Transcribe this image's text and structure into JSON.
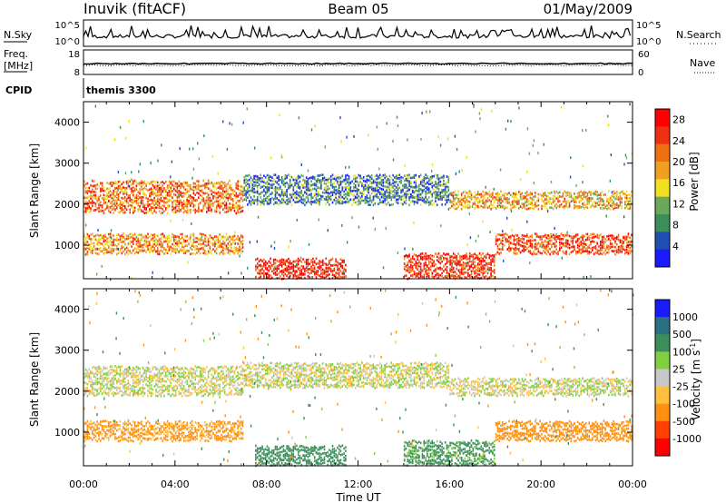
{
  "header": {
    "station": "Inuvik (fitACF)",
    "beam": "Beam 05",
    "date": "01/May/2009"
  },
  "top_panels": {
    "nsky_label": "N.Sky",
    "nsky_ticks": [
      "10^5",
      "10^0"
    ],
    "nsearch_label": "N.Search",
    "nsearch_ticks": [
      "10^5",
      "10^0"
    ],
    "freq_label": "Freq.",
    "freq_unit": "[MHz]",
    "freq_ticks": [
      "18",
      "8"
    ],
    "nave_label": "Nave",
    "nave_ticks": [
      "60",
      "0"
    ],
    "cpid_label": "CPID",
    "cpid_value": "themis 3300"
  },
  "colors": {
    "power_scale": [
      "#1a1aff",
      "#1f4fb0",
      "#3a8f5a",
      "#6ca85a",
      "#f0e020",
      "#f0a020",
      "#f07010",
      "#f03010",
      "#ff0000"
    ],
    "velocity_scale": [
      "#ff0000",
      "#ff4000",
      "#ff9010",
      "#ffc040",
      "#c8c8c8",
      "#80d040",
      "#3a8f5a",
      "#2a7080",
      "#1a1aff"
    ]
  },
  "chart_data": [
    {
      "type": "heatmap",
      "panel": "power",
      "xlabel": "",
      "ylabel": "Slant Range [km]",
      "x_ticks": [
        "00:00",
        "04:00",
        "08:00",
        "12:00",
        "16:00",
        "20:00",
        "00:00"
      ],
      "xlim_hours": [
        0,
        24
      ],
      "y_ticks": [
        "1000",
        "2000",
        "3000",
        "4000"
      ],
      "ylim": [
        180,
        4500
      ],
      "colorbar_label": "Power [dB]",
      "colorbar_ticks": [
        "4",
        "8",
        "12",
        "16",
        "20",
        "24",
        "28"
      ],
      "colorbar_range": [
        0,
        30
      ],
      "bands": [
        {
          "name": "upper",
          "t_start": 0.0,
          "t_end": 7.0,
          "range_km": [
            1800,
            2600
          ],
          "power_db": 22
        },
        {
          "name": "upper",
          "t_start": 7.0,
          "t_end": 16.0,
          "range_km": [
            2000,
            2700
          ],
          "power_db": 8
        },
        {
          "name": "upper",
          "t_start": 16.0,
          "t_end": 24.0,
          "range_km": [
            1900,
            2300
          ],
          "power_db": 18
        },
        {
          "name": "lower",
          "t_start": 0.0,
          "t_end": 7.0,
          "range_km": [
            800,
            1300
          ],
          "power_db": 20
        },
        {
          "name": "lower",
          "t_start": 7.5,
          "t_end": 11.5,
          "range_km": [
            200,
            700
          ],
          "power_db": 27
        },
        {
          "name": "lower",
          "t_start": 14.0,
          "t_end": 18.0,
          "range_km": [
            200,
            800
          ],
          "power_db": 26
        },
        {
          "name": "lower",
          "t_start": 18.0,
          "t_end": 24.0,
          "range_km": [
            800,
            1300
          ],
          "power_db": 24
        }
      ]
    },
    {
      "type": "heatmap",
      "panel": "velocity",
      "xlabel": "Time UT",
      "ylabel": "Slant Range [km]",
      "x_ticks": [
        "00:00",
        "04:00",
        "08:00",
        "12:00",
        "16:00",
        "20:00",
        "00:00"
      ],
      "xlim_hours": [
        0,
        24
      ],
      "y_ticks": [
        "1000",
        "2000",
        "3000",
        "4000"
      ],
      "ylim": [
        180,
        4500
      ],
      "colorbar_label": "Velocity [m s-1]",
      "colorbar_label_main": "Velocity",
      "colorbar_label_unit": "[m s",
      "colorbar_label_exp": "-1",
      "colorbar_label_close": "]",
      "colorbar_ticks": [
        "-1000",
        "-500",
        "-100",
        "-25",
        "25",
        "100",
        "500",
        "1000"
      ],
      "bands": [
        {
          "t_start": 0.0,
          "t_end": 7.0,
          "range_km": [
            1900,
            2600
          ],
          "velocity": 0
        },
        {
          "t_start": 7.0,
          "t_end": 16.0,
          "range_km": [
            2100,
            2700
          ],
          "velocity": 0
        },
        {
          "t_start": 16.0,
          "t_end": 24.0,
          "range_km": [
            1900,
            2300
          ],
          "velocity": 0
        },
        {
          "t_start": 0.0,
          "t_end": 7.0,
          "range_km": [
            800,
            1300
          ],
          "velocity": -150
        },
        {
          "t_start": 7.5,
          "t_end": 11.5,
          "range_km": [
            200,
            700
          ],
          "velocity": 300
        },
        {
          "t_start": 14.0,
          "t_end": 18.0,
          "range_km": [
            200,
            800
          ],
          "velocity": 150
        },
        {
          "t_start": 18.0,
          "t_end": 24.0,
          "range_km": [
            800,
            1300
          ],
          "velocity": -300
        }
      ]
    }
  ]
}
